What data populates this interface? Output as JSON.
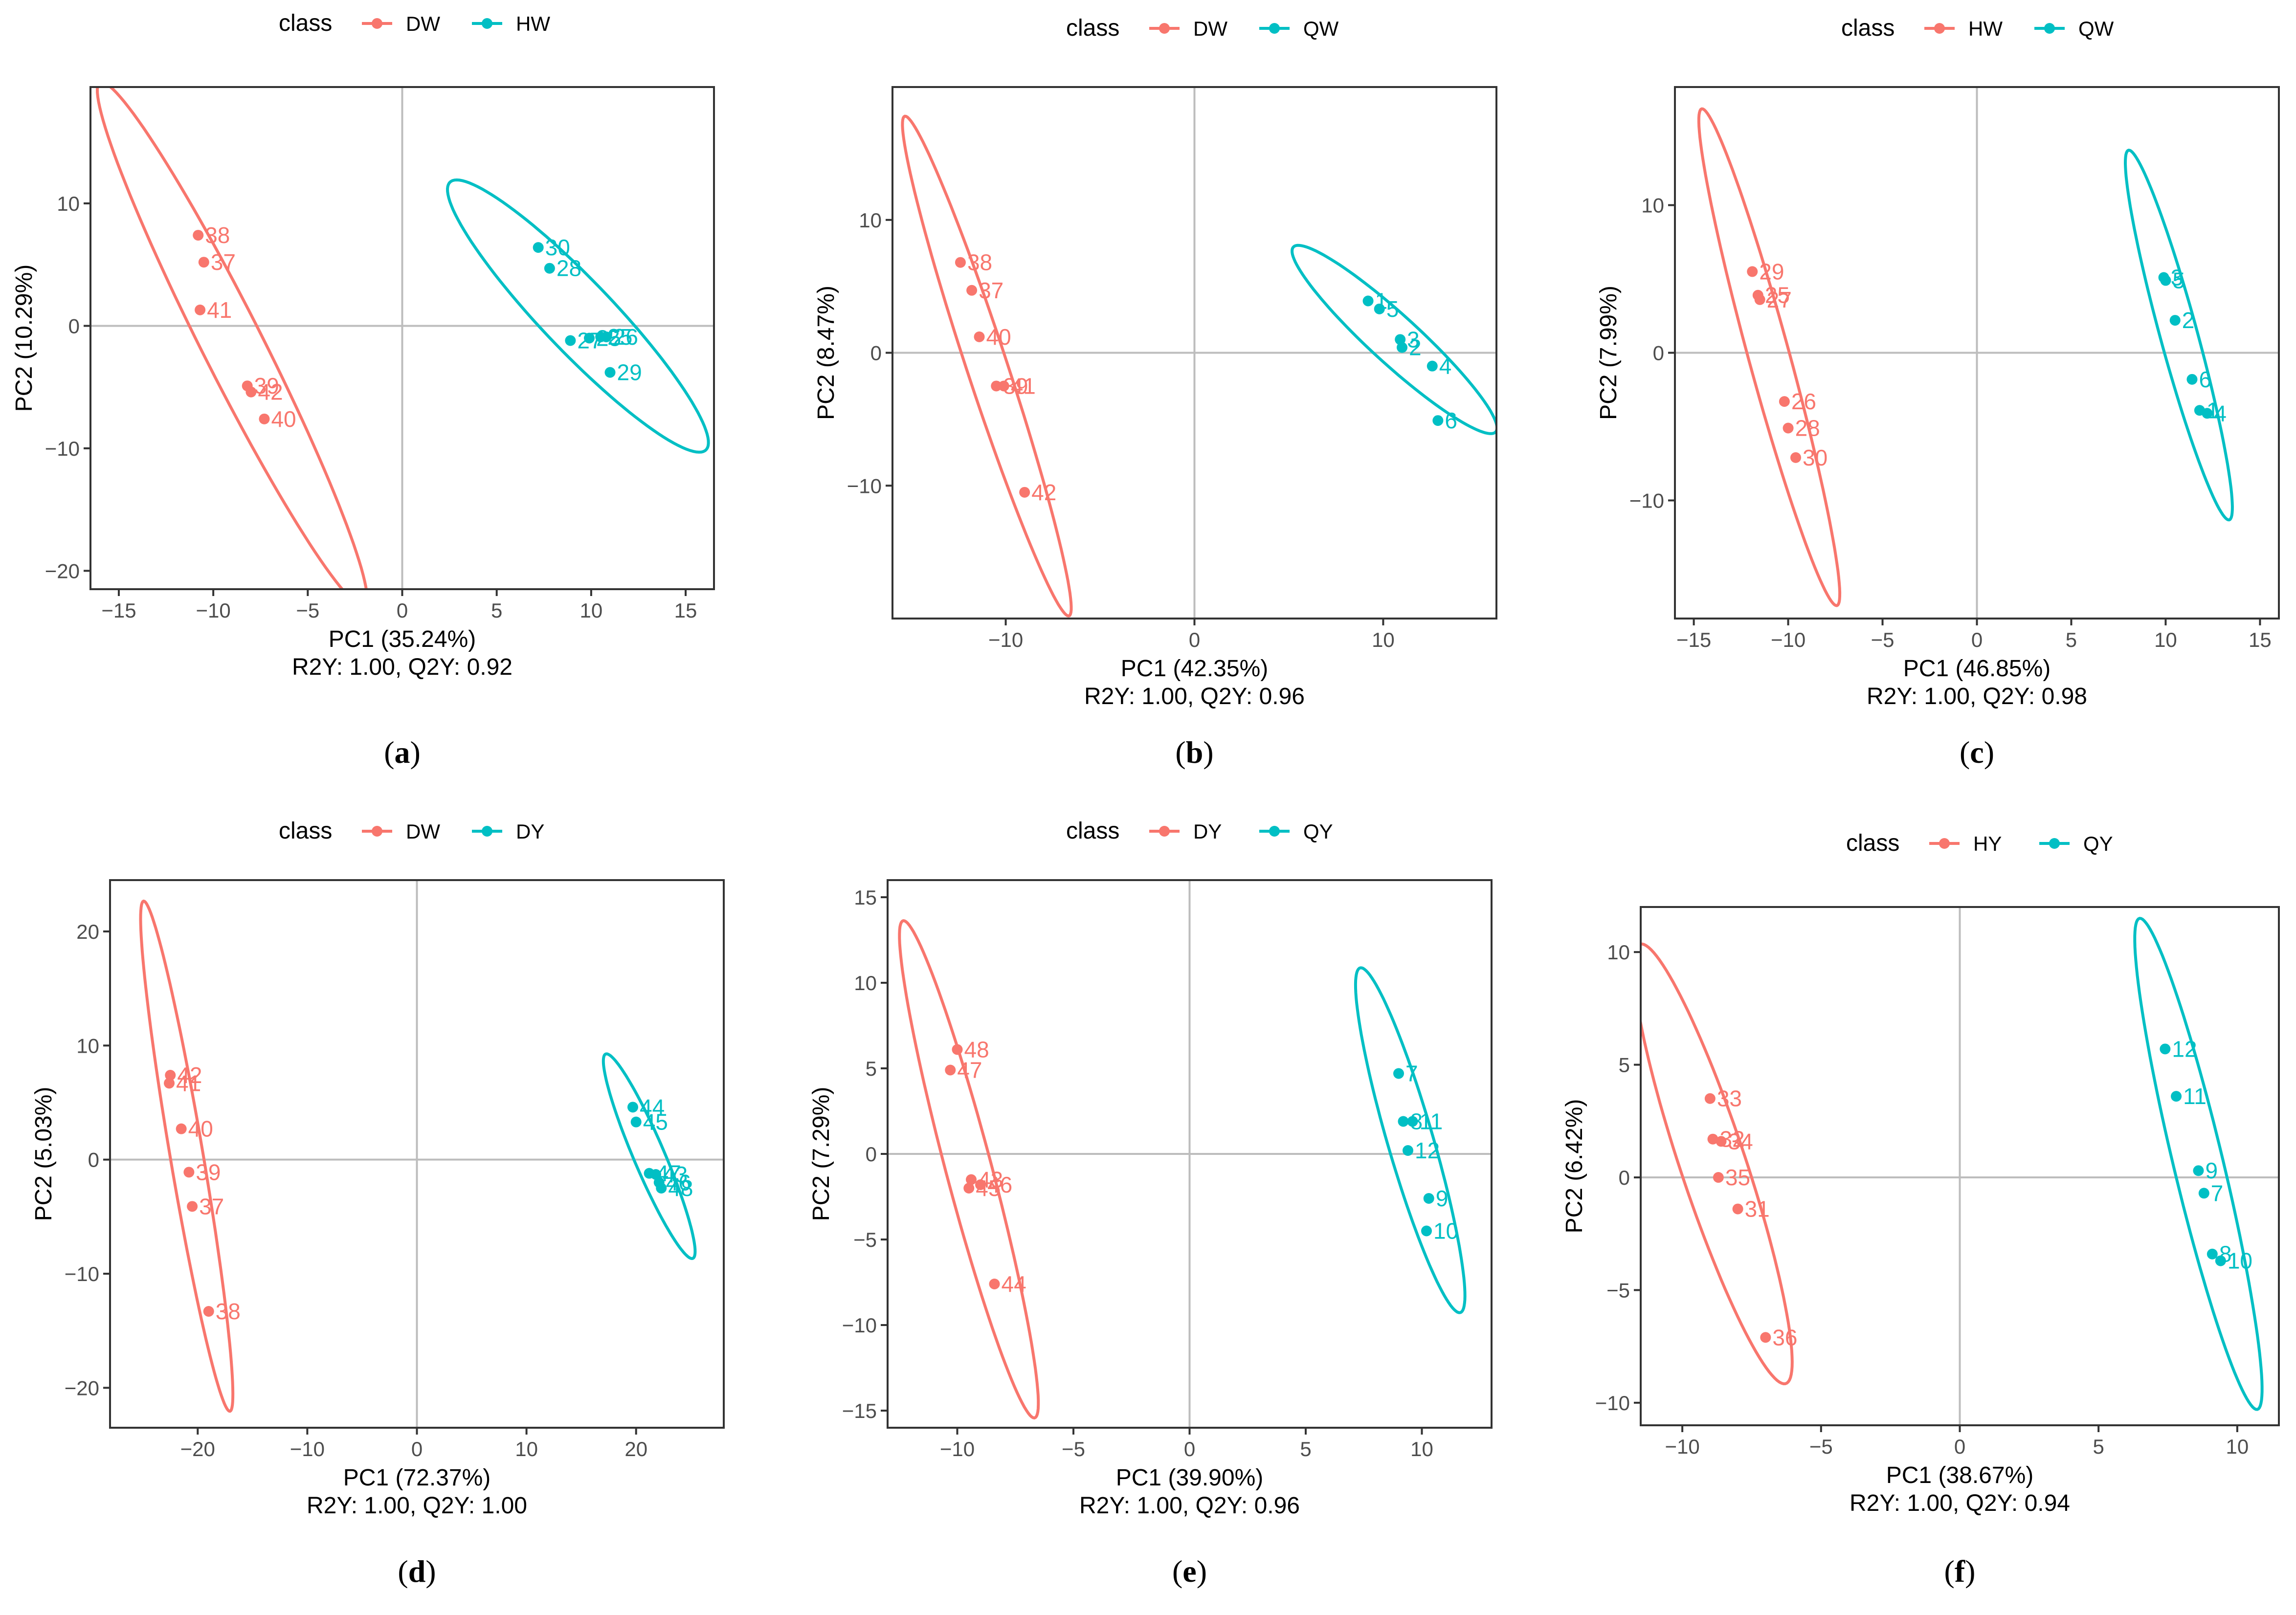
{
  "colors": {
    "group_a": "#F8766D",
    "group_b": "#00BFC4",
    "refline": "#bdbdbd",
    "frame": "#333333"
  },
  "legend_title": "class",
  "chart_data": [
    {
      "type": "scatter",
      "panel": "a",
      "xlabel": "PC1 (35.24%)",
      "ylabel": "PC2 (10.29%)",
      "metrics": "R2Y: 1.00, Q2Y: 0.92",
      "xlim": [
        -16.5,
        16.5
      ],
      "ylim": [
        -21.5,
        19.5
      ],
      "xticks": [
        -15,
        -10,
        -5,
        0,
        5,
        10,
        15
      ],
      "yticks": [
        -20,
        -10,
        0,
        10
      ],
      "series": [
        {
          "name": "DW",
          "ellipse": {
            "cx": -9,
            "cy": -1.5,
            "rx": 22.5,
            "ry": 1.7,
            "angle": -72
          },
          "points": [
            {
              "x": -10.8,
              "y": 7.4,
              "label": "38"
            },
            {
              "x": -10.5,
              "y": 5.2,
              "label": "37"
            },
            {
              "x": -10.7,
              "y": 1.3,
              "label": "41"
            },
            {
              "x": -8.2,
              "y": -4.9,
              "label": "39"
            },
            {
              "x": -8.0,
              "y": -5.4,
              "label": "42"
            },
            {
              "x": -7.3,
              "y": -7.6,
              "label": "40"
            }
          ]
        },
        {
          "name": "HW",
          "ellipse": {
            "cx": 9.3,
            "cy": 0.8,
            "rx": 12.9,
            "ry": 2.2,
            "angle": -59
          },
          "points": [
            {
              "x": 7.2,
              "y": 6.4,
              "label": "30"
            },
            {
              "x": 7.8,
              "y": 4.7,
              "label": "28"
            },
            {
              "x": 8.9,
              "y": -1.2,
              "label": "27"
            },
            {
              "x": 9.9,
              "y": -1.0,
              "label": "25"
            },
            {
              "x": 10.5,
              "y": -0.9,
              "label": "25"
            },
            {
              "x": 10.8,
              "y": -0.9,
              "label": "26"
            },
            {
              "x": 11.0,
              "y": -3.8,
              "label": "29"
            }
          ]
        }
      ]
    },
    {
      "type": "scatter",
      "panel": "b",
      "xlabel": "PC1 (42.35%)",
      "ylabel": "PC2 (8.47%)",
      "metrics": "R2Y: 1.00, Q2Y: 0.96",
      "xlim": [
        -16,
        16
      ],
      "ylim": [
        -20,
        20
      ],
      "xticks": [
        -10,
        0,
        10
      ],
      "yticks": [
        -10,
        0,
        10
      ],
      "series": [
        {
          "name": "DW",
          "ellipse": {
            "cx": -11,
            "cy": -1.0,
            "rx": 19.3,
            "ry": 1.1,
            "angle": -77
          },
          "points": [
            {
              "x": -12.4,
              "y": 6.8,
              "label": "38"
            },
            {
              "x": -11.8,
              "y": 4.7,
              "label": "37"
            },
            {
              "x": -11.4,
              "y": 1.2,
              "label": "40"
            },
            {
              "x": -10.5,
              "y": -2.5,
              "label": "39"
            },
            {
              "x": -10.1,
              "y": -2.5,
              "label": "41"
            },
            {
              "x": -9.0,
              "y": -10.5,
              "label": "42"
            }
          ]
        },
        {
          "name": "QW",
          "ellipse": {
            "cx": 10.6,
            "cy": 1.0,
            "rx": 8.8,
            "ry": 1.5,
            "angle": -53
          },
          "points": [
            {
              "x": 9.2,
              "y": 3.9,
              "label": "1"
            },
            {
              "x": 9.8,
              "y": 3.3,
              "label": "5"
            },
            {
              "x": 10.9,
              "y": 1.0,
              "label": "3"
            },
            {
              "x": 11.0,
              "y": 0.4,
              "label": "2"
            },
            {
              "x": 12.6,
              "y": -1.0,
              "label": "4"
            },
            {
              "x": 12.9,
              "y": -5.1,
              "label": "6"
            }
          ]
        }
      ]
    },
    {
      "type": "scatter",
      "panel": "c",
      "xlabel": "PC1 (46.85%)",
      "ylabel": "PC2 (7.99%)",
      "metrics": "R2Y: 1.00, Q2Y: 0.98",
      "xlim": [
        -16,
        16
      ],
      "ylim": [
        -18,
        18
      ],
      "xticks": [
        -15,
        -10,
        -5,
        0,
        5,
        10,
        15
      ],
      "yticks": [
        -10,
        0,
        10
      ],
      "series": [
        {
          "name": "HW",
          "ellipse": {
            "cx": -11,
            "cy": -0.3,
            "rx": 17.2,
            "ry": 1.1,
            "angle": -78
          },
          "points": [
            {
              "x": -11.9,
              "y": 5.5,
              "label": "29"
            },
            {
              "x": -11.6,
              "y": 3.9,
              "label": "25"
            },
            {
              "x": -11.5,
              "y": 3.6,
              "label": "27"
            },
            {
              "x": -10.2,
              "y": -3.3,
              "label": "26"
            },
            {
              "x": -10.0,
              "y": -5.1,
              "label": "28"
            },
            {
              "x": -9.6,
              "y": -7.1,
              "label": "30"
            }
          ]
        },
        {
          "name": "QW",
          "ellipse": {
            "cx": 10.7,
            "cy": 1.2,
            "rx": 12.8,
            "ry": 1.0,
            "angle": -78
          },
          "points": [
            {
              "x": 9.9,
              "y": 5.1,
              "label": "3"
            },
            {
              "x": 10.0,
              "y": 4.9,
              "label": "5"
            },
            {
              "x": 10.5,
              "y": 2.2,
              "label": "2"
            },
            {
              "x": 11.4,
              "y": -1.8,
              "label": "6"
            },
            {
              "x": 11.8,
              "y": -3.9,
              "label": "1"
            },
            {
              "x": 12.2,
              "y": -4.1,
              "label": "4"
            }
          ]
        }
      ]
    },
    {
      "type": "scatter",
      "panel": "d",
      "xlabel": "PC1 (72.37%)",
      "ylabel": "PC2 (5.03%)",
      "metrics": "R2Y: 1.00, Q2Y: 1.00",
      "xlim": [
        -28,
        28
      ],
      "ylim": [
        -23.5,
        24.5
      ],
      "xticks": [
        -20,
        -10,
        0,
        10,
        20
      ],
      "yticks": [
        -20,
        -10,
        0,
        10,
        20
      ],
      "series": [
        {
          "name": "DW",
          "ellipse": {
            "cx": -21,
            "cy": 0.3,
            "rx": 22.7,
            "ry": 1.5,
            "angle": -80
          },
          "points": [
            {
              "x": -22.5,
              "y": 7.4,
              "label": "42"
            },
            {
              "x": -22.6,
              "y": 6.7,
              "label": "41"
            },
            {
              "x": -21.5,
              "y": 2.7,
              "label": "40"
            },
            {
              "x": -20.8,
              "y": -1.1,
              "label": "39"
            },
            {
              "x": -20.5,
              "y": -4.1,
              "label": "37"
            },
            {
              "x": -19.0,
              "y": -13.3,
              "label": "38"
            }
          ]
        },
        {
          "name": "DY",
          "ellipse": {
            "cx": 21.2,
            "cy": 0.3,
            "rx": 9.8,
            "ry": 1.4,
            "angle": -66
          },
          "points": [
            {
              "x": 19.7,
              "y": 4.6,
              "label": "44"
            },
            {
              "x": 20.0,
              "y": 3.3,
              "label": "45"
            },
            {
              "x": 21.2,
              "y": -1.2,
              "label": "47"
            },
            {
              "x": 21.8,
              "y": -1.3,
              "label": "43"
            },
            {
              "x": 22.1,
              "y": -2.0,
              "label": "46"
            },
            {
              "x": 22.3,
              "y": -2.5,
              "label": "48"
            }
          ]
        }
      ]
    },
    {
      "type": "scatter",
      "panel": "e",
      "xlabel": "PC1 (39.90%)",
      "ylabel": "PC2 (7.29%)",
      "metrics": "R2Y: 1.00, Q2Y: 0.96",
      "xlim": [
        -13,
        13
      ],
      "ylim": [
        -16,
        16
      ],
      "xticks": [
        -10,
        -5,
        0,
        5,
        10
      ],
      "yticks": [
        -15,
        -10,
        -5,
        0,
        5,
        10,
        15
      ],
      "series": [
        {
          "name": "DY",
          "ellipse": {
            "cx": -9.5,
            "cy": -0.9,
            "rx": 14.8,
            "ry": 1.0,
            "angle": -79
          },
          "points": [
            {
              "x": -10.0,
              "y": 6.1,
              "label": "48"
            },
            {
              "x": -10.3,
              "y": 4.9,
              "label": "47"
            },
            {
              "x": -9.4,
              "y": -1.5,
              "label": "43"
            },
            {
              "x": -9.5,
              "y": -2.0,
              "label": "45"
            },
            {
              "x": -9.0,
              "y": -1.8,
              "label": "46"
            },
            {
              "x": -8.4,
              "y": -7.6,
              "label": "44"
            }
          ]
        },
        {
          "name": "QY",
          "ellipse": {
            "cx": 9.5,
            "cy": 0.8,
            "rx": 10.3,
            "ry": 1.0,
            "angle": -78
          },
          "points": [
            {
              "x": 9.0,
              "y": 4.7,
              "label": "7"
            },
            {
              "x": 9.2,
              "y": 1.9,
              "label": "8"
            },
            {
              "x": 9.6,
              "y": 1.9,
              "label": "11"
            },
            {
              "x": 9.4,
              "y": 0.2,
              "label": "12"
            },
            {
              "x": 10.3,
              "y": -2.6,
              "label": "9"
            },
            {
              "x": 10.2,
              "y": -4.5,
              "label": "10"
            }
          ]
        }
      ]
    },
    {
      "type": "scatter",
      "panel": "f",
      "xlabel": "PC1 (38.67%)",
      "ylabel": "PC2 (6.42%)",
      "metrics": "R2Y: 1.00, Q2Y: 0.94",
      "xlim": [
        -11.5,
        11.5
      ],
      "ylim": [
        -11,
        12
      ],
      "xticks": [
        -10,
        -5,
        0,
        5,
        10
      ],
      "yticks": [
        -10,
        -5,
        0,
        5,
        10
      ],
      "series": [
        {
          "name": "HY",
          "ellipse": {
            "cx": -8.9,
            "cy": 0.6,
            "rx": 10.1,
            "ry": 1.2,
            "angle": -75
          },
          "points": [
            {
              "x": -9.0,
              "y": 3.5,
              "label": "33"
            },
            {
              "x": -8.9,
              "y": 1.7,
              "label": "32"
            },
            {
              "x": -8.6,
              "y": 1.6,
              "label": "34"
            },
            {
              "x": -8.7,
              "y": 0.0,
              "label": "35"
            },
            {
              "x": -8.0,
              "y": -1.4,
              "label": "31"
            },
            {
              "x": -7.0,
              "y": -7.1,
              "label": "36"
            }
          ]
        },
        {
          "name": "QY",
          "ellipse": {
            "cx": 8.6,
            "cy": 0.6,
            "rx": 11.1,
            "ry": 0.9,
            "angle": -79
          },
          "points": [
            {
              "x": 7.4,
              "y": 5.7,
              "label": "12"
            },
            {
              "x": 7.8,
              "y": 3.6,
              "label": "11"
            },
            {
              "x": 8.6,
              "y": 0.3,
              "label": "9"
            },
            {
              "x": 8.8,
              "y": -0.7,
              "label": "7"
            },
            {
              "x": 9.1,
              "y": -3.4,
              "label": "8"
            },
            {
              "x": 9.4,
              "y": -3.7,
              "label": "10"
            }
          ]
        }
      ]
    }
  ]
}
